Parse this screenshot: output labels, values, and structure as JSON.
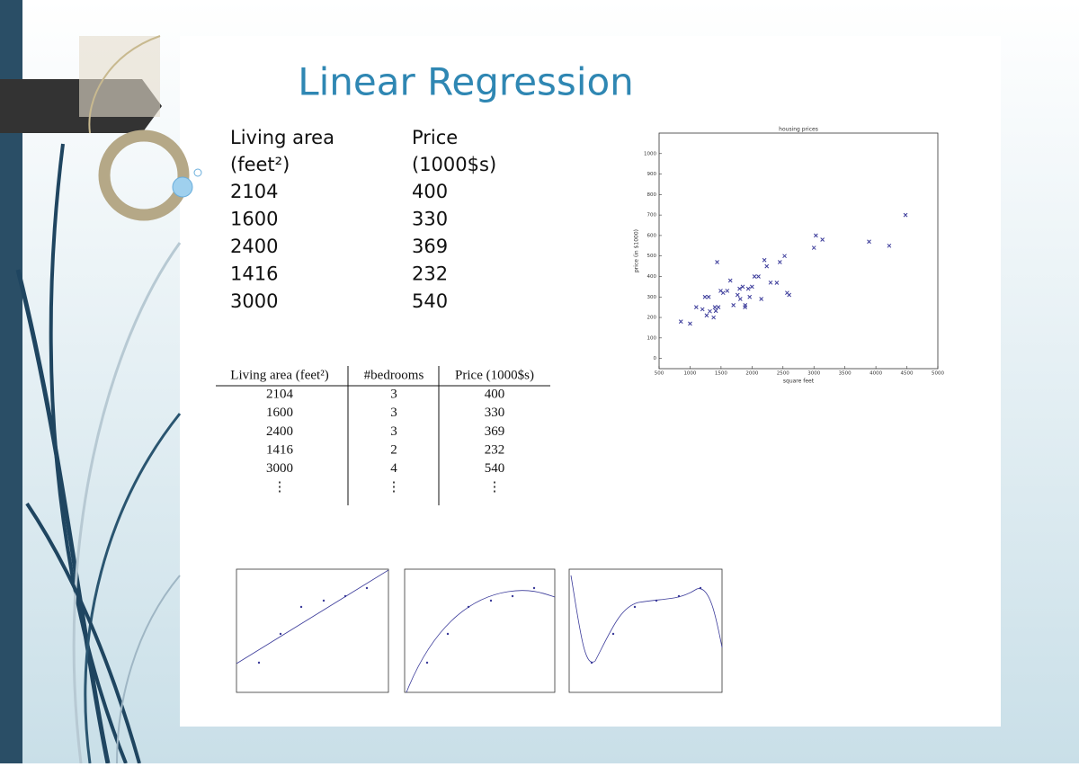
{
  "title": "Linear Regression",
  "table1": {
    "headers": [
      [
        "Living area",
        "(feet²)"
      ],
      [
        "Price",
        "(1000$s)"
      ]
    ],
    "rows": [
      [
        "2104",
        "400"
      ],
      [
        "1600",
        "330"
      ],
      [
        "2400",
        "369"
      ],
      [
        "1416",
        "232"
      ],
      [
        "3000",
        "540"
      ]
    ]
  },
  "table2": {
    "headers": [
      "Living area (feet²)",
      "#bedrooms",
      "Price (1000$s)"
    ],
    "rows": [
      [
        "2104",
        "3",
        "400"
      ],
      [
        "1600",
        "3",
        "330"
      ],
      [
        "2400",
        "3",
        "369"
      ],
      [
        "1416",
        "2",
        "232"
      ],
      [
        "3000",
        "4",
        "540"
      ],
      [
        "⋮",
        "⋮",
        "⋮"
      ]
    ]
  },
  "chart_data": {
    "type": "scatter",
    "title": "housing prices",
    "x_label": "square feet",
    "y_label": "price (in $1000)",
    "x": [
      852,
      1000,
      1100,
      1200,
      1240,
      1268,
      1300,
      1320,
      1380,
      1400,
      1416,
      1437,
      1458,
      1494,
      1534,
      1600,
      1650,
      1700,
      1767,
      1800,
      1811,
      1850,
      1888,
      1890,
      1940,
      1962,
      2000,
      2040,
      2104,
      2150,
      2200,
      2238,
      2300,
      2400,
      2450,
      2526,
      2567,
      2600,
      3000,
      3031,
      3137,
      3890,
      4215,
      4478
    ],
    "values": [
      180,
      170,
      250,
      240,
      300,
      210,
      300,
      230,
      200,
      250,
      232,
      470,
      250,
      330,
      320,
      330,
      380,
      260,
      310,
      340,
      290,
      350,
      250,
      260,
      340,
      300,
      350,
      400,
      400,
      290,
      480,
      450,
      370,
      369,
      470,
      500,
      320,
      310,
      540,
      600,
      580,
      570,
      550,
      700
    ],
    "xlim": [
      500,
      5000
    ],
    "ylim": [
      -50,
      1100
    ],
    "xticks": [
      500,
      1000,
      1500,
      2000,
      2500,
      3000,
      3500,
      4000,
      4500,
      5000
    ],
    "yticks": [
      0,
      100,
      200,
      300,
      400,
      500,
      600,
      700,
      800,
      900,
      1000
    ],
    "color": "#3b3b9a"
  }
}
